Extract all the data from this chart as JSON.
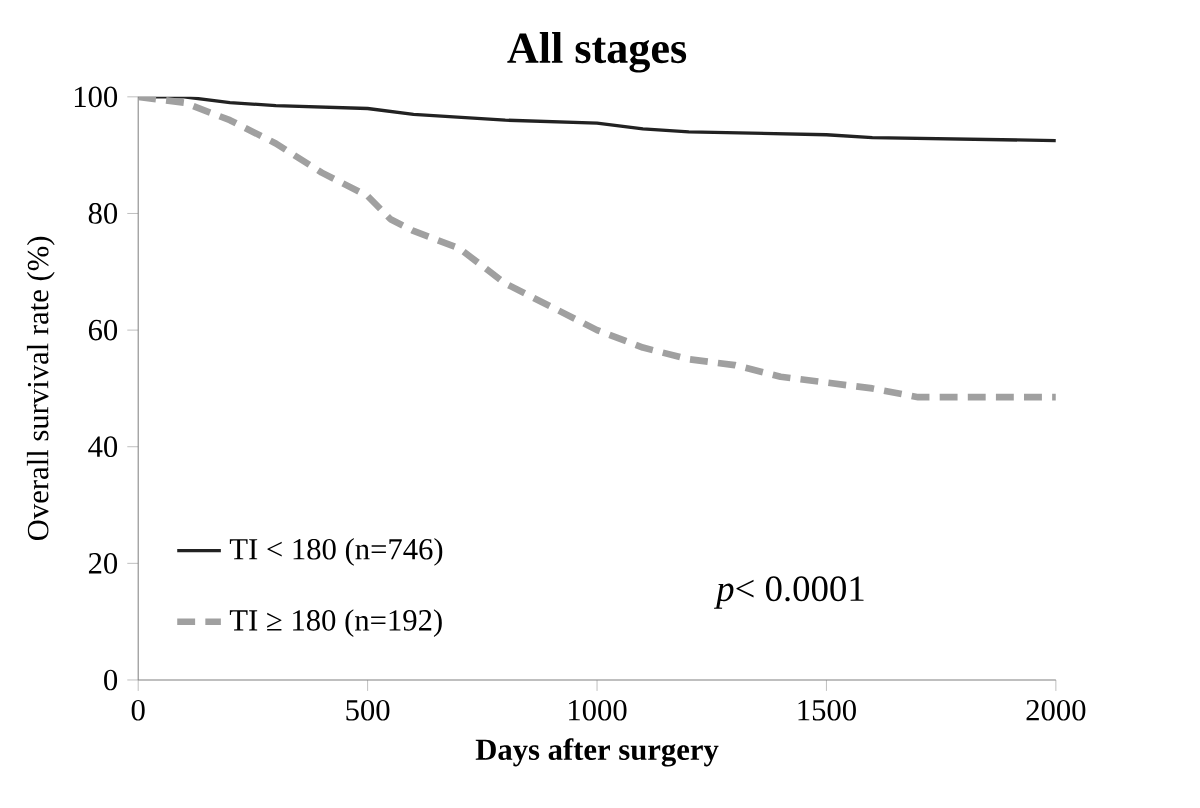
{
  "chart_data": {
    "type": "line",
    "title": "All stages",
    "xlabel": "Days after surgery",
    "ylabel": "Overall survival rate (%)",
    "series": [
      {
        "name": "TI < 180 (n=746)",
        "color": "#222222",
        "line_style": "solid",
        "x": [
          0,
          100,
          200,
          300,
          500,
          600,
          800,
          1000,
          1100,
          1200,
          1500,
          1600,
          2000
        ],
        "values": [
          100,
          100,
          99,
          98.5,
          98,
          97,
          96,
          95.5,
          94.5,
          94,
          93.5,
          93,
          92.5
        ]
      },
      {
        "name": "TI ≥ 180 (n=192)",
        "color": "#a0a0a0",
        "line_style": "dashed",
        "x": [
          0,
          100,
          200,
          300,
          400,
          500,
          550,
          600,
          700,
          750,
          800,
          900,
          1000,
          1100,
          1200,
          1300,
          1400,
          1500,
          1600,
          1700,
          2000
        ],
        "values": [
          100,
          99,
          96,
          92,
          87,
          83,
          79,
          77,
          74,
          71,
          68,
          64,
          60,
          57,
          55,
          54,
          52,
          51,
          50,
          48.5,
          48.5
        ]
      }
    ],
    "xlim": [
      0,
      2000
    ],
    "xticks": [
      0,
      500,
      1000,
      1500,
      2000
    ],
    "ylim": [
      0,
      100
    ],
    "yticks": [
      0,
      20,
      40,
      60,
      80,
      100
    ],
    "legend": "bottom left",
    "annotations": [
      "*p*< 0.0001"
    ]
  }
}
